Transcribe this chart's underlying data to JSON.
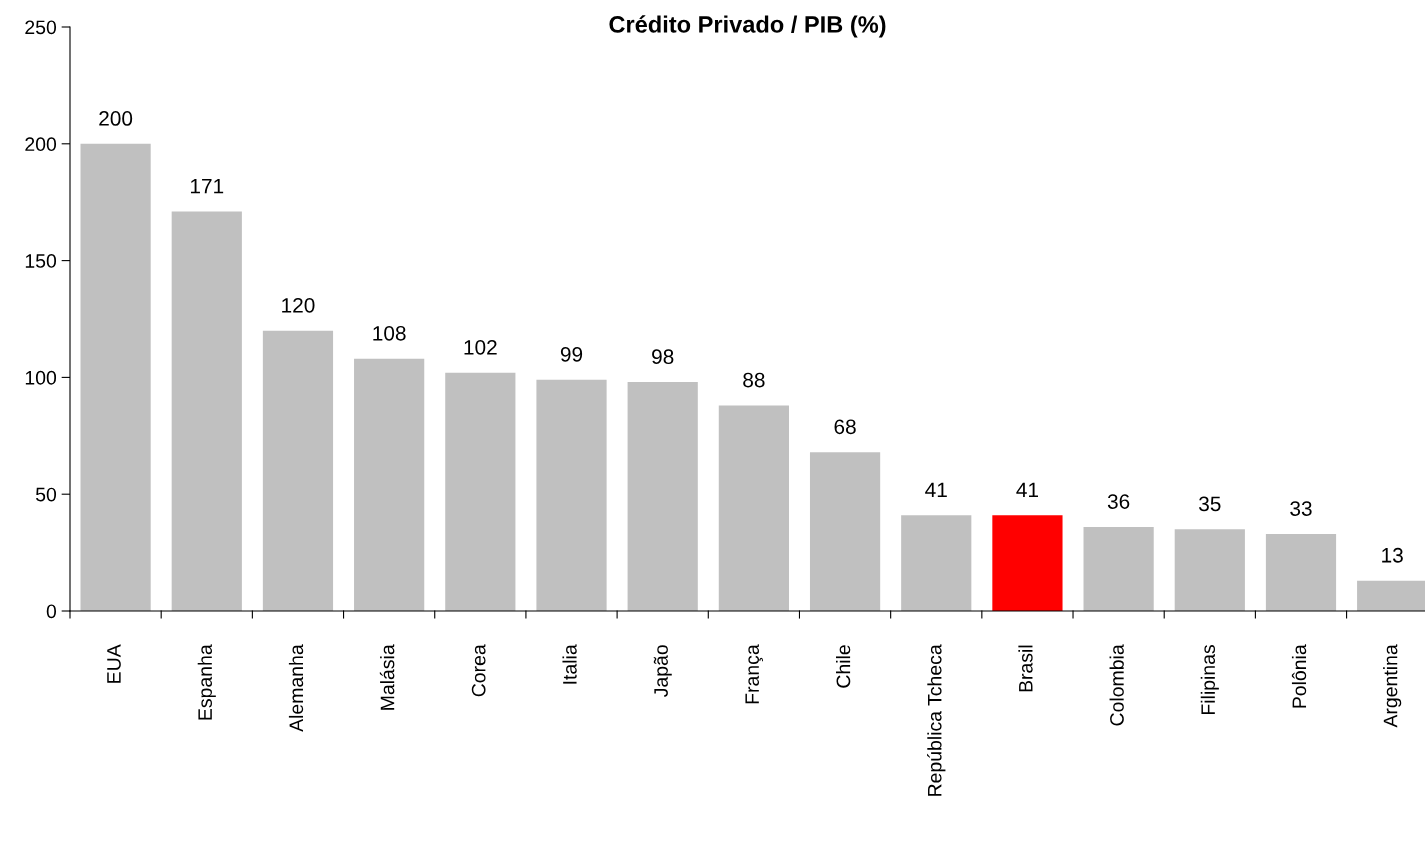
{
  "chart_data": {
    "type": "bar",
    "title": "Crédito Privado / PIB (%)",
    "categories": [
      "EUA",
      "Espanha",
      "Alemanha",
      "Malásia",
      "Corea",
      "Italia",
      "Japão",
      "França",
      "Chile",
      "República Tcheca",
      "Brasil",
      "Colombia",
      "Filipinas",
      "Polônia",
      "Argentina"
    ],
    "values": [
      200,
      171,
      120,
      108,
      102,
      99,
      98,
      88,
      68,
      41,
      41,
      36,
      35,
      33,
      13
    ],
    "colors": [
      "#c0c0c0",
      "#c0c0c0",
      "#c0c0c0",
      "#c0c0c0",
      "#c0c0c0",
      "#c0c0c0",
      "#c0c0c0",
      "#c0c0c0",
      "#c0c0c0",
      "#c0c0c0",
      "#ff0000",
      "#c0c0c0",
      "#c0c0c0",
      "#c0c0c0",
      "#c0c0c0"
    ],
    "ylim": [
      0,
      250
    ],
    "yticks": [
      0,
      50,
      100,
      150,
      200,
      250
    ],
    "data_labels": true,
    "grid": false,
    "legend": false
  }
}
